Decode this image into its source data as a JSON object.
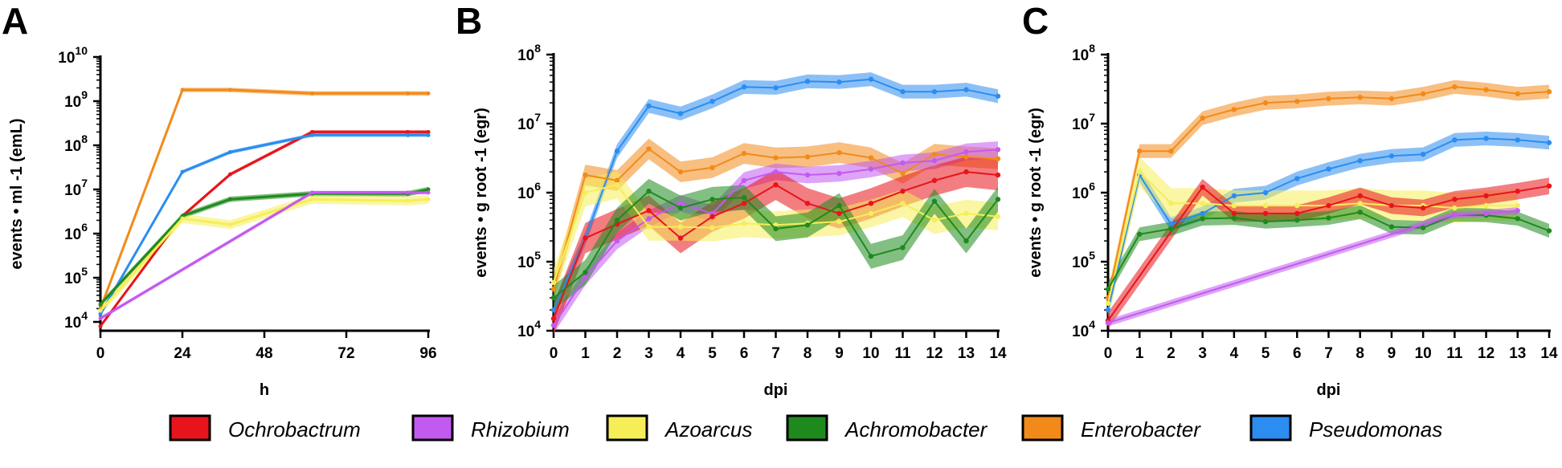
{
  "series_style": [
    {
      "name": "Ochrobactrum",
      "color": "#e8141b"
    },
    {
      "name": "Rhizobium",
      "color": "#c35af0"
    },
    {
      "name": "Azoarcus",
      "color": "#f5ee58"
    },
    {
      "name": "Achromobacter",
      "color": "#1e8a1e"
    },
    {
      "name": "Enterobacter",
      "color": "#f28a1a"
    },
    {
      "name": "Pseudomonas",
      "color": "#2b8df0"
    }
  ],
  "chart_data": [
    {
      "panel": "A",
      "type": "line",
      "scale_y": "log",
      "xlabel": "h",
      "ylabel": "events • ml -1 (emL)",
      "xlim": [
        0,
        96
      ],
      "ylim_exp": [
        3.8,
        10
      ],
      "xticks": [
        "0",
        "24",
        "48",
        "72",
        "96"
      ],
      "yticks_exp": [
        4,
        5,
        6,
        7,
        8,
        9,
        10
      ],
      "series": [
        {
          "name": "Enterobacter",
          "x": [
            0,
            24,
            38,
            62,
            90,
            96
          ],
          "y": [
            20000,
            1800000000,
            1800000000,
            1500000000,
            1500000000,
            1500000000
          ],
          "spread": 0.05
        },
        {
          "name": "Ochrobactrum",
          "x": [
            0,
            24,
            38,
            62,
            90,
            96
          ],
          "y": [
            8000,
            2500000,
            22000000,
            200000000,
            200000000,
            200000000
          ],
          "spread": 0.04
        },
        {
          "name": "Pseudomonas",
          "x": [
            0,
            24,
            38,
            62,
            90,
            96
          ],
          "y": [
            15000,
            25000000,
            70000000,
            170000000,
            170000000,
            170000000
          ],
          "spread": 0.04
        },
        {
          "name": "Achromobacter",
          "x": [
            0,
            24,
            38,
            62,
            90,
            96
          ],
          "y": [
            25000,
            2500000,
            6000000,
            8000000,
            8000000,
            10000000
          ],
          "spread": 0.06
        },
        {
          "name": "Azoarcus",
          "x": [
            0,
            24,
            38,
            62,
            90,
            96
          ],
          "y": [
            18000,
            2200000,
            1600000,
            6000000,
            5500000,
            6000000
          ],
          "spread": 0.1
        },
        {
          "name": "Rhizobium",
          "x": [
            0,
            62,
            90,
            96
          ],
          "y": [
            12000,
            8500000,
            8500000,
            8500000
          ],
          "spread": 0.04
        }
      ]
    },
    {
      "panel": "B",
      "type": "line",
      "scale_y": "log",
      "xlabel": "dpi",
      "ylabel": "events • g root -1 (egr)",
      "xlim": [
        0,
        14
      ],
      "ylim_exp": [
        4,
        8
      ],
      "xticks": [
        "0",
        "1",
        "2",
        "3",
        "4",
        "5",
        "6",
        "7",
        "8",
        "9",
        "10",
        "11",
        "12",
        "13",
        "14"
      ],
      "yticks_exp": [
        4,
        5,
        6,
        7,
        8
      ],
      "series": [
        {
          "name": "Pseudomonas",
          "x": [
            0,
            1,
            2,
            3,
            4,
            5,
            6,
            7,
            8,
            9,
            10,
            11,
            12,
            13,
            14
          ],
          "y": [
            20000,
            220000,
            4000000,
            18000000,
            14000000,
            21000000,
            34000000,
            33000000,
            41000000,
            40000000,
            44000000,
            29000000,
            29000000,
            31000000,
            25000000
          ],
          "spread": 0.1
        },
        {
          "name": "Enterobacter",
          "x": [
            0,
            1,
            2,
            3,
            4,
            5,
            6,
            7,
            8,
            9,
            10,
            11,
            12,
            13,
            14
          ],
          "y": [
            40000,
            1800000,
            1500000,
            4300000,
            2000000,
            2300000,
            3700000,
            3200000,
            3300000,
            3800000,
            3200000,
            1900000,
            3600000,
            3300000,
            3100000
          ],
          "spread": 0.15
        },
        {
          "name": "Rhizobium",
          "x": [
            0,
            1,
            2,
            3,
            4,
            5,
            6,
            7,
            8,
            9,
            10,
            11,
            12,
            13,
            14
          ],
          "y": [
            12000,
            60000,
            200000,
            420000,
            700000,
            500000,
            1500000,
            2000000,
            1800000,
            1900000,
            2200000,
            2700000,
            2900000,
            3900000,
            4200000
          ],
          "spread": 0.12
        },
        {
          "name": "Ochrobactrum",
          "x": [
            0,
            1,
            2,
            3,
            4,
            5,
            6,
            7,
            8,
            9,
            10,
            11,
            12,
            13,
            14
          ],
          "y": [
            15000,
            220000,
            350000,
            550000,
            220000,
            450000,
            700000,
            1300000,
            700000,
            500000,
            700000,
            1050000,
            1500000,
            2000000,
            1800000
          ],
          "spread": 0.22
        },
        {
          "name": "Azoarcus",
          "x": [
            0,
            1,
            2,
            3,
            4,
            5,
            6,
            7,
            8,
            9,
            10,
            11,
            12,
            13,
            14
          ],
          "y": [
            50000,
            1000000,
            1300000,
            320000,
            320000,
            310000,
            360000,
            340000,
            360000,
            380000,
            500000,
            700000,
            400000,
            500000,
            450000
          ],
          "spread": 0.2
        },
        {
          "name": "Achromobacter",
          "x": [
            0,
            1,
            2,
            3,
            4,
            5,
            6,
            7,
            8,
            9,
            10,
            11,
            12,
            13,
            14
          ],
          "y": [
            30000,
            70000,
            400000,
            1050000,
            600000,
            800000,
            850000,
            300000,
            340000,
            650000,
            120000,
            160000,
            750000,
            200000,
            800000
          ],
          "spread": 0.18
        }
      ]
    },
    {
      "panel": "C",
      "type": "line",
      "scale_y": "log",
      "xlabel": "dpi",
      "ylabel": "events • g root -1 (egr)",
      "xlim": [
        0,
        14
      ],
      "ylim_exp": [
        4,
        8
      ],
      "xticks": [
        "0",
        "1",
        "2",
        "3",
        "4",
        "5",
        "6",
        "7",
        "8",
        "9",
        "10",
        "11",
        "12",
        "13",
        "14"
      ],
      "yticks_exp": [
        4,
        5,
        6,
        7,
        8
      ],
      "series": [
        {
          "name": "Enterobacter",
          "x": [
            0,
            1,
            2,
            3,
            4,
            5,
            6,
            7,
            8,
            9,
            10,
            11,
            12,
            13,
            14
          ],
          "y": [
            30000,
            4000000,
            4000000,
            12000000,
            16000000,
            20000000,
            21000000,
            23000000,
            24000000,
            23000000,
            27000000,
            34000000,
            31000000,
            27000000,
            29000000
          ],
          "spread": 0.1
        },
        {
          "name": "Pseudomonas",
          "x": [
            0,
            1,
            2,
            3,
            4,
            5,
            6,
            7,
            8,
            9,
            10,
            11,
            12,
            13,
            14
          ],
          "y": [
            20000,
            1800000,
            350000,
            500000,
            900000,
            1000000,
            1600000,
            2200000,
            2900000,
            3400000,
            3600000,
            5800000,
            6100000,
            5800000,
            5300000
          ],
          "spread": 0.1
        },
        {
          "name": "Azoarcus",
          "x": [
            0,
            1,
            2,
            3,
            4,
            5,
            6,
            7,
            8,
            9,
            10,
            11,
            12,
            13
          ],
          "y": [
            25000,
            2000000,
            700000,
            700000,
            650000,
            650000,
            650000,
            650000,
            700000,
            650000,
            650000,
            600000,
            650000,
            650000
          ],
          "spread": 0.22
        },
        {
          "name": "Ochrobactrum",
          "x": [
            0,
            3,
            4,
            5,
            6,
            7,
            8,
            9,
            10,
            11,
            12,
            13,
            14
          ],
          "y": [
            14000,
            1200000,
            500000,
            500000,
            500000,
            650000,
            900000,
            650000,
            600000,
            800000,
            900000,
            1050000,
            1250000
          ],
          "spread": 0.12
        },
        {
          "name": "Achromobacter",
          "x": [
            0,
            1,
            2,
            3,
            4,
            5,
            6,
            7,
            8,
            9,
            10,
            11,
            12,
            13,
            14
          ],
          "y": [
            40000,
            250000,
            300000,
            420000,
            430000,
            380000,
            400000,
            430000,
            520000,
            320000,
            310000,
            480000,
            470000,
            420000,
            280000
          ],
          "spread": 0.1
        },
        {
          "name": "Rhizobium",
          "x": [
            0,
            11,
            12,
            13
          ],
          "y": [
            13000,
            480000,
            500000,
            550000
          ],
          "spread": 0.05
        }
      ]
    }
  ]
}
